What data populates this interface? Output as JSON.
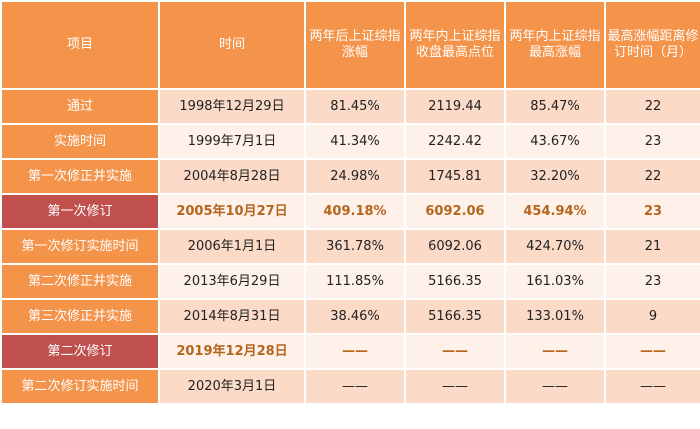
{
  "headers": [
    "项目",
    "时间",
    "两年后上证综指涨幅",
    "两年内上证综指收盘最高点位",
    "两年内上证综指最高涨幅",
    "最高涨幅距离修订时间（月）"
  ],
  "rows": [
    {
      "label": "通过",
      "date": "1998年12月29日",
      "gain2y": "81.45%",
      "peak": "2119.44",
      "maxgain": "85.47%",
      "months": "22"
    },
    {
      "label": "实施时间",
      "date": "1999年7月1日",
      "gain2y": "41.34%",
      "peak": "2242.42",
      "maxgain": "43.67%",
      "months": "23"
    },
    {
      "label": "第一次修正并实施",
      "date": "2004年8月28日",
      "gain2y": "24.98%",
      "peak": "1745.81",
      "maxgain": "32.20%",
      "months": "22"
    },
    {
      "label": "第一次修订",
      "date": "2005年10月27日",
      "gain2y": "409.18%",
      "peak": "6092.06",
      "maxgain": "454.94%",
      "months": "23"
    },
    {
      "label": "第一次修订实施时间",
      "date": "2006年1月1日",
      "gain2y": "361.78%",
      "peak": "6092.06",
      "maxgain": "424.70%",
      "months": "21"
    },
    {
      "label": "第二次修正并实施",
      "date": "2013年6月29日",
      "gain2y": "111.85%",
      "peak": "5166.35",
      "maxgain": "161.03%",
      "months": "23"
    },
    {
      "label": "第三次修正并实施",
      "date": "2014年8月31日",
      "gain2y": "38.46%",
      "peak": "5166.35",
      "maxgain": "133.01%",
      "months": "9"
    },
    {
      "label": "第二次修订",
      "date": "2019年12月28日",
      "gain2y": "——",
      "peak": "——",
      "maxgain": "——",
      "months": "——"
    },
    {
      "label": "第二次修订实施时间",
      "date": "2020年3月1日",
      "gain2y": "——",
      "peak": "——",
      "maxgain": "——",
      "months": "——"
    }
  ],
  "colors": {
    "header": "#f4934a",
    "highlight_label": "#c0504d",
    "highlight_text": "#b5651d",
    "row_odd": "#fbdac8",
    "row_even": "#fdf1ea"
  }
}
